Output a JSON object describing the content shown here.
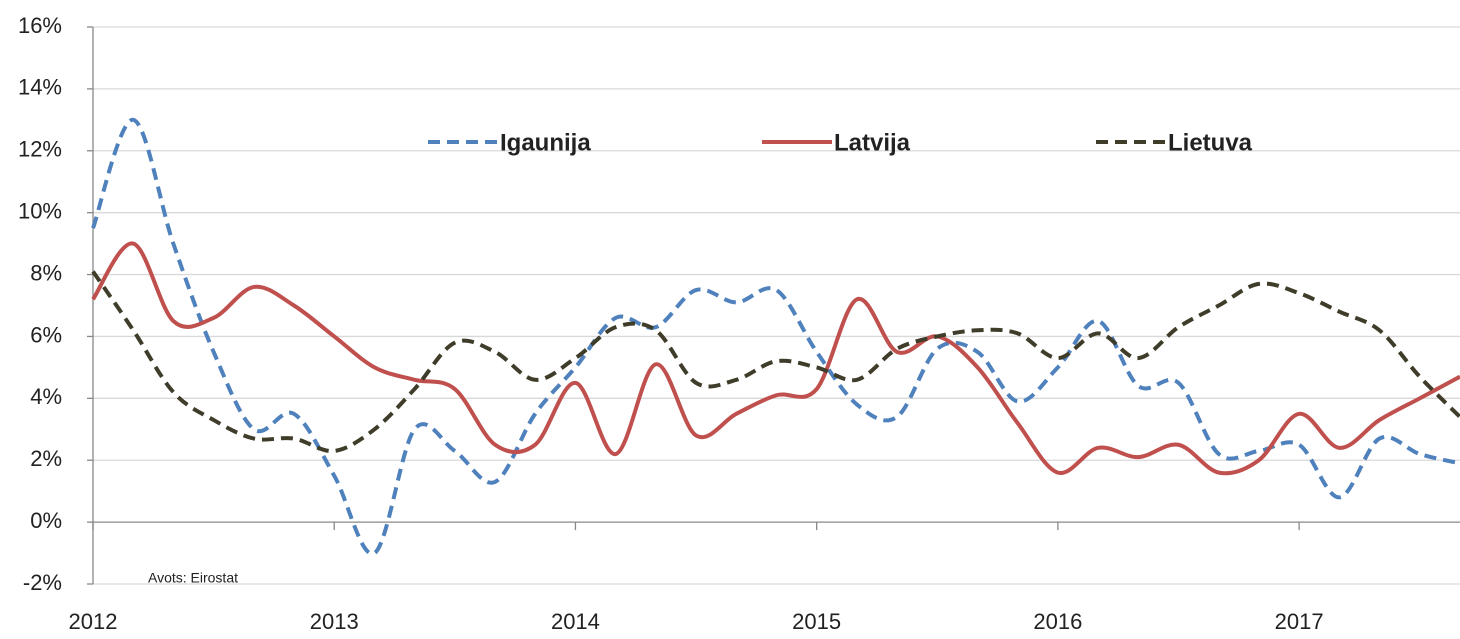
{
  "chart_data": {
    "type": "line",
    "annotation": "Avots: Eirostat",
    "x": [
      2012,
      2012.167,
      2012.333,
      2012.5,
      2012.667,
      2012.833,
      2013,
      2013.167,
      2013.333,
      2013.5,
      2013.667,
      2013.833,
      2014,
      2014.167,
      2014.333,
      2014.5,
      2014.667,
      2014.833,
      2015,
      2015.167,
      2015.333,
      2015.5,
      2015.667,
      2015.833,
      2016,
      2016.167,
      2016.333,
      2016.5,
      2016.667,
      2016.833,
      2017,
      2017.167,
      2017.333,
      2017.5,
      2017.667
    ],
    "series": [
      {
        "name": "Igaunija",
        "color": "#4f81bd",
        "dash": true,
        "values": [
          9.5,
          13.0,
          9.0,
          5.5,
          3.0,
          3.5,
          1.5,
          -1.0,
          3.0,
          2.3,
          1.3,
          3.5,
          5.0,
          6.6,
          6.3,
          7.5,
          7.1,
          7.5,
          5.5,
          3.8,
          3.4,
          5.6,
          5.5,
          3.9,
          5.0,
          6.5,
          4.4,
          4.5,
          2.2,
          2.3,
          2.5,
          0.8,
          2.7,
          2.2,
          1.9
        ]
      },
      {
        "name": "Latvija",
        "color": "#c0504d",
        "dash": false,
        "values": [
          7.2,
          9.0,
          6.5,
          6.6,
          7.6,
          7.0,
          6.0,
          5.0,
          4.6,
          4.3,
          2.5,
          2.5,
          4.5,
          2.2,
          5.1,
          2.8,
          3.5,
          4.1,
          4.3,
          7.2,
          5.5,
          6.0,
          5.0,
          3.2,
          1.6,
          2.4,
          2.1,
          2.5,
          1.6,
          2.0,
          3.5,
          2.4,
          3.3,
          4.0,
          4.7
        ]
      },
      {
        "name": "Lietuva",
        "color": "#3f3d2a",
        "dash": true,
        "values": [
          8.1,
          6.2,
          4.2,
          3.3,
          2.7,
          2.7,
          2.3,
          3.0,
          4.3,
          5.8,
          5.5,
          4.6,
          5.3,
          6.3,
          6.2,
          4.5,
          4.6,
          5.2,
          5.0,
          4.6,
          5.6,
          6.0,
          6.2,
          6.1,
          5.3,
          6.1,
          5.3,
          6.3,
          7.0,
          7.7,
          7.4,
          6.8,
          6.2,
          4.7,
          3.4
        ]
      }
    ],
    "xlim": [
      2012,
      2017.667
    ],
    "xticks": [
      2012,
      2013,
      2014,
      2015,
      2016,
      2017
    ],
    "ylim": [
      -2,
      16
    ],
    "yticks": [
      {
        "value": -2,
        "label": "-2%"
      },
      {
        "value": 0,
        "label": "0%"
      },
      {
        "value": 2,
        "label": "2%"
      },
      {
        "value": 4,
        "label": "4%"
      },
      {
        "value": 6,
        "label": "6%"
      },
      {
        "value": 8,
        "label": "8%"
      },
      {
        "value": 10,
        "label": "10%"
      },
      {
        "value": 12,
        "label": "12%"
      },
      {
        "value": 14,
        "label": "14%"
      },
      {
        "value": 16,
        "label": "16%"
      }
    ],
    "grid": true,
    "legend": "top"
  }
}
